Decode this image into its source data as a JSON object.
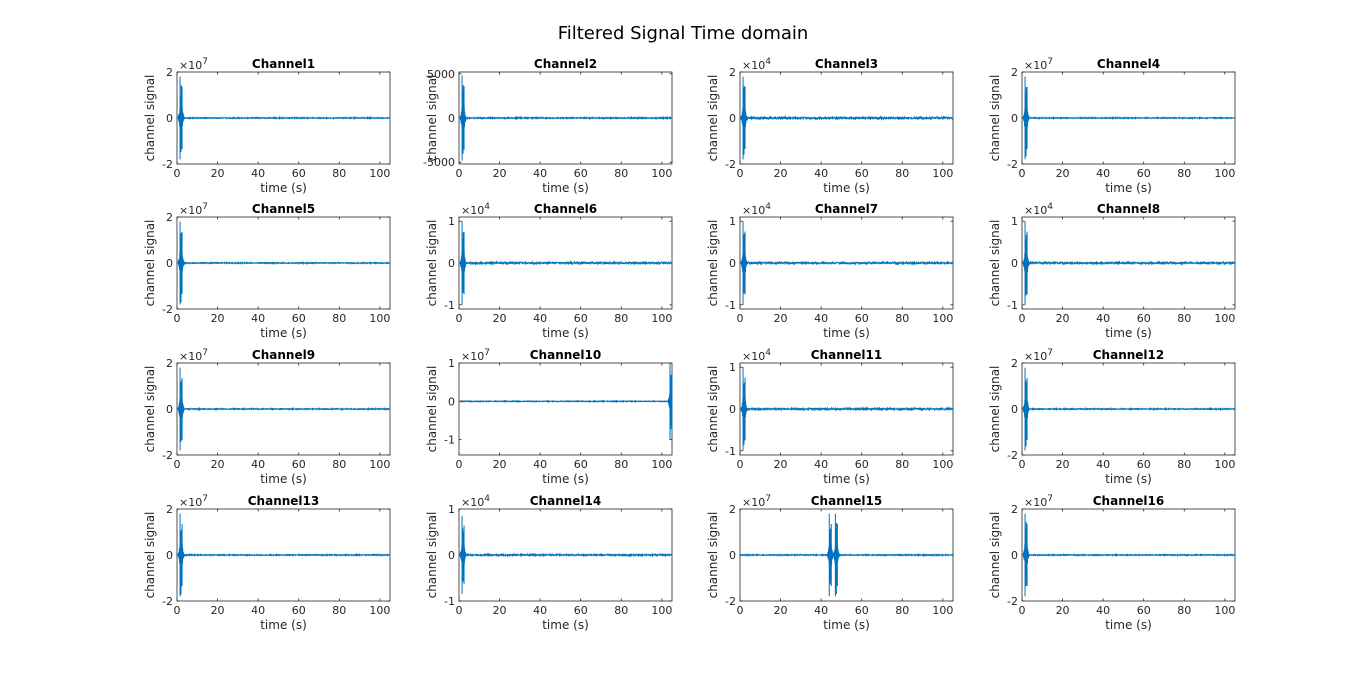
{
  "chart_data": {
    "title": "Filtered Signal Time domain",
    "type": "line",
    "series_color": "#0072BD",
    "axis_color": "#262626",
    "grid": false,
    "subplots": [
      {
        "title": "Channel1",
        "xlabel": "time (s)",
        "ylabel": "channel signal",
        "xlim": [
          0,
          105
        ],
        "xticks": [
          0,
          20,
          40,
          60,
          80,
          100
        ],
        "ylim": [
          -2,
          2
        ],
        "yticks": [
          -2,
          0,
          2
        ],
        "ytick_labels": [
          "-2",
          "0",
          "2"
        ],
        "exponent": "×10",
        "exponent_power": "7",
        "bursts": [
          {
            "t": 2,
            "amp": 1.8
          }
        ],
        "noise": 0.02
      },
      {
        "title": "Channel2",
        "xlabel": "time (s)",
        "ylabel": "channel signal",
        "xlim": [
          0,
          105
        ],
        "xticks": [
          0,
          20,
          40,
          60,
          80,
          100
        ],
        "ylim": [
          -5200,
          5200
        ],
        "yticks": [
          -5000,
          0,
          5000
        ],
        "ytick_labels": [
          "-5000",
          "0",
          "5000"
        ],
        "exponent": "",
        "exponent_power": "",
        "bursts": [
          {
            "t": 2,
            "amp": 4800
          }
        ],
        "noise": 60
      },
      {
        "title": "Channel3",
        "xlabel": "time (s)",
        "ylabel": "channel signal",
        "xlim": [
          0,
          105
        ],
        "xticks": [
          0,
          20,
          40,
          60,
          80,
          100
        ],
        "ylim": [
          -2,
          2
        ],
        "yticks": [
          -2,
          0,
          2
        ],
        "ytick_labels": [
          "-2",
          "0",
          "2"
        ],
        "exponent": "×10",
        "exponent_power": "4",
        "bursts": [
          {
            "t": 2,
            "amp": 1.8
          }
        ],
        "noise": 0.04
      },
      {
        "title": "Channel4",
        "xlabel": "time (s)",
        "ylabel": "channel signal",
        "xlim": [
          0,
          105
        ],
        "xticks": [
          0,
          20,
          40,
          60,
          80,
          100
        ],
        "ylim": [
          -2,
          2
        ],
        "yticks": [
          -2,
          0,
          2
        ],
        "ytick_labels": [
          "-2",
          "0",
          "2"
        ],
        "exponent": "×10",
        "exponent_power": "7",
        "bursts": [
          {
            "t": 2,
            "amp": 1.8
          }
        ],
        "noise": 0.02
      },
      {
        "title": "Channel5",
        "xlabel": "time (s)",
        "ylabel": "channel signal",
        "xlim": [
          0,
          105
        ],
        "xticks": [
          0,
          20,
          40,
          60,
          80,
          100
        ],
        "ylim": [
          -2,
          2
        ],
        "yticks": [
          -2,
          0,
          2
        ],
        "ytick_labels": [
          "-2",
          "0",
          "2"
        ],
        "exponent": "×10",
        "exponent_power": "7",
        "bursts": [
          {
            "t": 2,
            "amp": 1.8
          }
        ],
        "noise": 0.02
      },
      {
        "title": "Channel6",
        "xlabel": "time (s)",
        "ylabel": "channel signal",
        "xlim": [
          0,
          105
        ],
        "xticks": [
          0,
          20,
          40,
          60,
          80,
          100
        ],
        "ylim": [
          -1.1,
          1.1
        ],
        "yticks": [
          -1,
          0,
          1
        ],
        "ytick_labels": [
          "-1",
          "0",
          "1"
        ],
        "exponent": "×10",
        "exponent_power": "4",
        "bursts": [
          {
            "t": 2,
            "amp": 1.0
          }
        ],
        "noise": 0.02
      },
      {
        "title": "Channel7",
        "xlabel": "time (s)",
        "ylabel": "channel signal",
        "xlim": [
          0,
          105
        ],
        "xticks": [
          0,
          20,
          40,
          60,
          80,
          100
        ],
        "ylim": [
          -1.1,
          1.1
        ],
        "yticks": [
          -1,
          0,
          1
        ],
        "ytick_labels": [
          "-1",
          "0",
          "1"
        ],
        "exponent": "×10",
        "exponent_power": "4",
        "bursts": [
          {
            "t": 2,
            "amp": 1.0
          }
        ],
        "noise": 0.02
      },
      {
        "title": "Channel8",
        "xlabel": "time (s)",
        "ylabel": "channel signal",
        "xlim": [
          0,
          105
        ],
        "xticks": [
          0,
          20,
          40,
          60,
          80,
          100
        ],
        "ylim": [
          -1.1,
          1.1
        ],
        "yticks": [
          -1,
          0,
          1
        ],
        "ytick_labels": [
          "-1",
          "0",
          "1"
        ],
        "exponent": "×10",
        "exponent_power": "4",
        "bursts": [
          {
            "t": 2,
            "amp": 1.0
          }
        ],
        "noise": 0.02
      },
      {
        "title": "Channel9",
        "xlabel": "time (s)",
        "ylabel": "channel signal",
        "xlim": [
          0,
          105
        ],
        "xticks": [
          0,
          20,
          40,
          60,
          80,
          100
        ],
        "ylim": [
          -2,
          2
        ],
        "yticks": [
          -2,
          0,
          2
        ],
        "ytick_labels": [
          "-2",
          "0",
          "2"
        ],
        "exponent": "×10",
        "exponent_power": "7",
        "bursts": [
          {
            "t": 2,
            "amp": 1.8
          }
        ],
        "noise": 0.02
      },
      {
        "title": "Channel10",
        "xlabel": "time (s)",
        "ylabel": "channel signal",
        "xlim": [
          0,
          105
        ],
        "xticks": [
          0,
          20,
          40,
          60,
          80,
          100
        ],
        "ylim": [
          -1.4,
          1.0
        ],
        "yticks": [
          -1,
          0,
          1
        ],
        "ytick_labels": [
          "-1",
          "0",
          "1"
        ],
        "exponent": "×10",
        "exponent_power": "7",
        "bursts": [
          {
            "t": 104.5,
            "amp": 1.0
          }
        ],
        "noise": 0.01
      },
      {
        "title": "Channel11",
        "xlabel": "time (s)",
        "ylabel": "channel signal",
        "xlim": [
          0,
          105
        ],
        "xticks": [
          0,
          20,
          40,
          60,
          80,
          100
        ],
        "ylim": [
          -1.1,
          1.1
        ],
        "yticks": [
          -1,
          0,
          1
        ],
        "ytick_labels": [
          "-1",
          "0",
          "1"
        ],
        "exponent": "×10",
        "exponent_power": "4",
        "bursts": [
          {
            "t": 2,
            "amp": 1.0
          }
        ],
        "noise": 0.02
      },
      {
        "title": "Channel12",
        "xlabel": "time (s)",
        "ylabel": "channel signal",
        "xlim": [
          0,
          105
        ],
        "xticks": [
          0,
          20,
          40,
          60,
          80,
          100
        ],
        "ylim": [
          -2,
          2
        ],
        "yticks": [
          -2,
          0,
          2
        ],
        "ytick_labels": [
          "-2",
          "0",
          "2"
        ],
        "exponent": "×10",
        "exponent_power": "7",
        "bursts": [
          {
            "t": 2,
            "amp": 1.8
          }
        ],
        "noise": 0.02
      },
      {
        "title": "Channel13",
        "xlabel": "time (s)",
        "ylabel": "channel signal",
        "xlim": [
          0,
          105
        ],
        "xticks": [
          0,
          20,
          40,
          60,
          80,
          100
        ],
        "ylim": [
          -2,
          2
        ],
        "yticks": [
          -2,
          0,
          2
        ],
        "ytick_labels": [
          "-2",
          "0",
          "2"
        ],
        "exponent": "×10",
        "exponent_power": "7",
        "bursts": [
          {
            "t": 2,
            "amp": 1.8
          }
        ],
        "noise": 0.02
      },
      {
        "title": "Channel14",
        "xlabel": "time (s)",
        "ylabel": "channel signal",
        "xlim": [
          0,
          105
        ],
        "xticks": [
          0,
          20,
          40,
          60,
          80,
          100
        ],
        "ylim": [
          -1,
          1
        ],
        "yticks": [
          -1,
          0,
          1
        ],
        "ytick_labels": [
          "-1",
          "0",
          "1"
        ],
        "exponent": "×10",
        "exponent_power": "4",
        "bursts": [
          {
            "t": 2,
            "amp": 0.85
          }
        ],
        "noise": 0.015
      },
      {
        "title": "Channel15",
        "xlabel": "time (s)",
        "ylabel": "channel signal",
        "xlim": [
          0,
          105
        ],
        "xticks": [
          0,
          20,
          40,
          60,
          80,
          100
        ],
        "ylim": [
          -2,
          2
        ],
        "yticks": [
          -2,
          0,
          2
        ],
        "ytick_labels": [
          "-2",
          "0",
          "2"
        ],
        "exponent": "×10",
        "exponent_power": "7",
        "bursts": [
          {
            "t": 44.5,
            "amp": 1.8
          },
          {
            "t": 47.5,
            "amp": 1.8
          }
        ],
        "noise": 0.02
      },
      {
        "title": "Channel16",
        "xlabel": "time (s)",
        "ylabel": "channel signal",
        "xlim": [
          0,
          105
        ],
        "xticks": [
          0,
          20,
          40,
          60,
          80,
          100
        ],
        "ylim": [
          -2,
          2
        ],
        "yticks": [
          -2,
          0,
          2
        ],
        "ytick_labels": [
          "-2",
          "0",
          "2"
        ],
        "exponent": "×10",
        "exponent_power": "7",
        "bursts": [
          {
            "t": 2,
            "amp": 1.8
          }
        ],
        "noise": 0.02
      }
    ]
  }
}
